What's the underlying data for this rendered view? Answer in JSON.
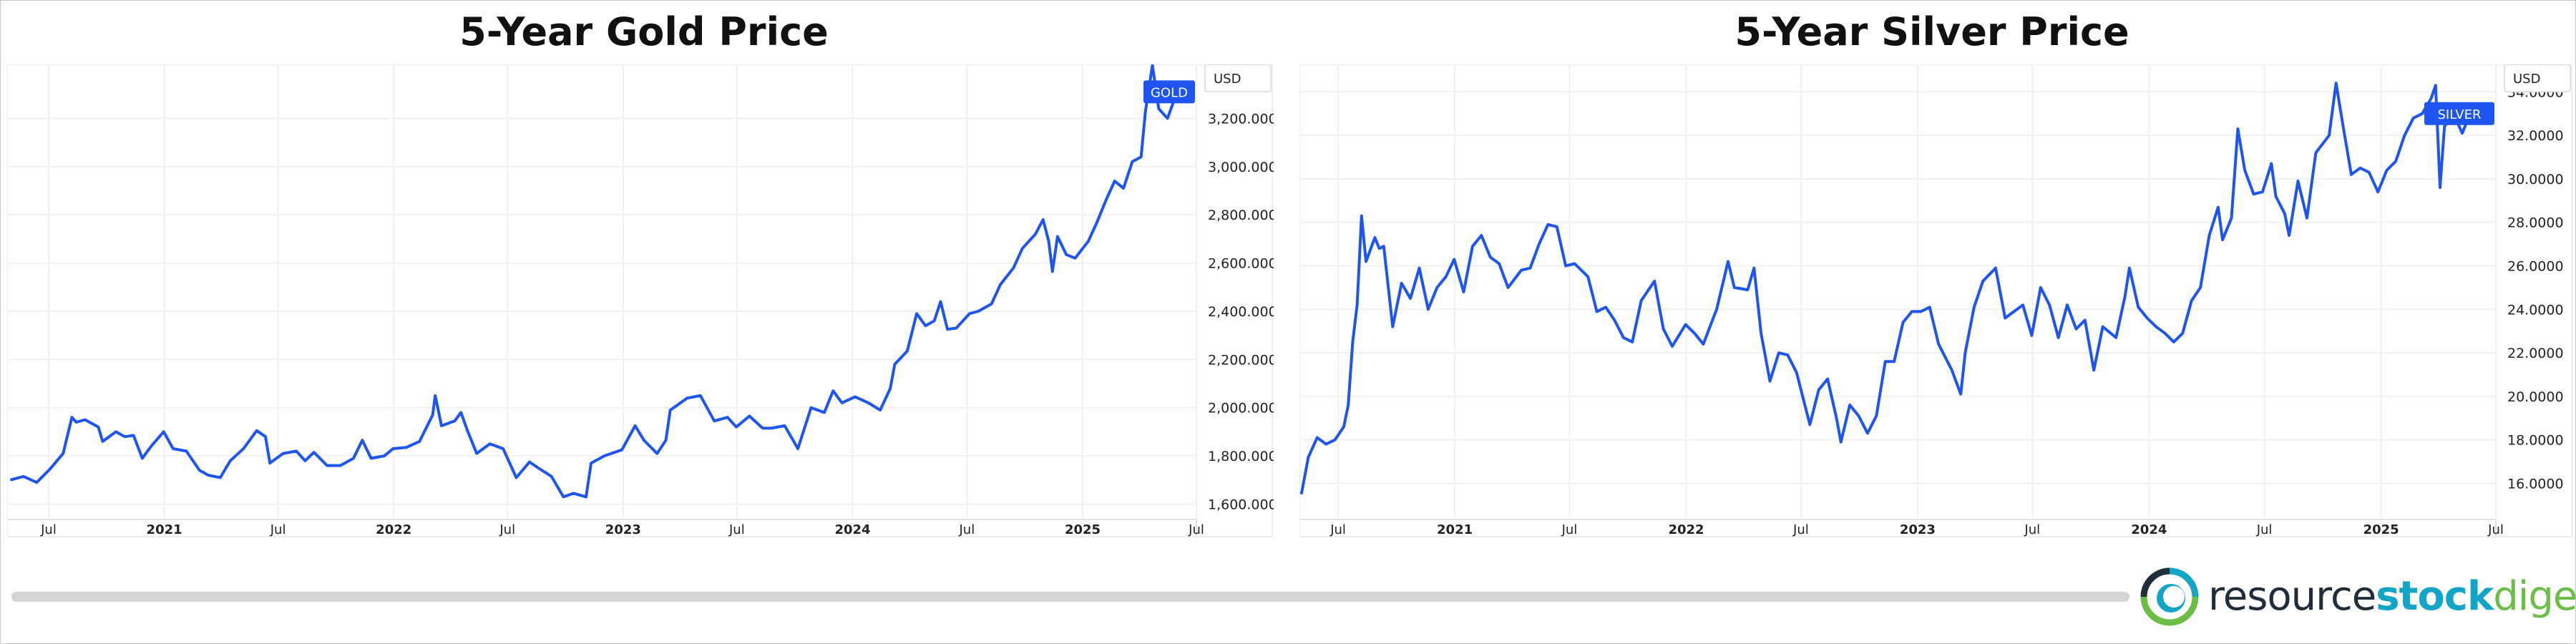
{
  "brand": {
    "part1": "resource",
    "part2": "stock",
    "part3": "digest",
    "colors": {
      "dark": "#1f2d3d",
      "blue": "#13a5c8",
      "green": "#6abd45"
    }
  },
  "styles": {
    "line_color": "#1e55f0",
    "grid_color": "#f0f0f0",
    "axis_text_color": "#222222"
  },
  "chart_data": [
    {
      "id": "gold",
      "type": "line",
      "title": "5-Year Gold Price",
      "currency_label": "USD",
      "series": [
        {
          "name": "GOLD"
        }
      ],
      "xlim": [
        "2020-04-26",
        "2025-07-01"
      ],
      "ylim": [
        1560,
        3400
      ],
      "yticks": [
        1600,
        1800,
        2000,
        2200,
        2400,
        2600,
        2800,
        3000,
        3200
      ],
      "ytick_labels": [
        "1,600.000",
        "1,800.000",
        "2,000.000",
        "2,200.000",
        "2,400.000",
        "2,600.000",
        "2,800.000",
        "3,000.000",
        "3,200.000"
      ],
      "xticks": [
        {
          "date": "2020-07-01",
          "label": "Jul",
          "bold": false
        },
        {
          "date": "2021-01-01",
          "label": "2021",
          "bold": true
        },
        {
          "date": "2021-07-01",
          "label": "Jul",
          "bold": false
        },
        {
          "date": "2022-01-01",
          "label": "2022",
          "bold": true
        },
        {
          "date": "2022-07-01",
          "label": "Jul",
          "bold": false
        },
        {
          "date": "2023-01-01",
          "label": "2023",
          "bold": true
        },
        {
          "date": "2023-07-01",
          "label": "Jul",
          "bold": false
        },
        {
          "date": "2024-01-01",
          "label": "2024",
          "bold": true
        },
        {
          "date": "2024-07-01",
          "label": "Jul",
          "bold": false
        },
        {
          "date": "2025-01-01",
          "label": "2025",
          "bold": true
        },
        {
          "date": "2025-07-01",
          "label": "Jul",
          "bold": false
        }
      ],
      "points": [
        [
          "2020-05-01",
          1700
        ],
        [
          "2020-05-22",
          1715
        ],
        [
          "2020-06-12",
          1690
        ],
        [
          "2020-07-03",
          1745
        ],
        [
          "2020-07-24",
          1810
        ],
        [
          "2020-08-07",
          1960
        ],
        [
          "2020-08-14",
          1940
        ],
        [
          "2020-08-28",
          1950
        ],
        [
          "2020-09-18",
          1920
        ],
        [
          "2020-09-25",
          1860
        ],
        [
          "2020-10-16",
          1900
        ],
        [
          "2020-10-30",
          1880
        ],
        [
          "2020-11-13",
          1885
        ],
        [
          "2020-11-27",
          1790
        ],
        [
          "2020-12-11",
          1840
        ],
        [
          "2020-12-31",
          1900
        ],
        [
          "2021-01-15",
          1830
        ],
        [
          "2021-02-05",
          1820
        ],
        [
          "2021-02-26",
          1740
        ],
        [
          "2021-03-12",
          1720
        ],
        [
          "2021-03-31",
          1710
        ],
        [
          "2021-04-16",
          1780
        ],
        [
          "2021-05-07",
          1830
        ],
        [
          "2021-05-28",
          1905
        ],
        [
          "2021-06-11",
          1880
        ],
        [
          "2021-06-18",
          1770
        ],
        [
          "2021-07-09",
          1810
        ],
        [
          "2021-07-30",
          1820
        ],
        [
          "2021-08-13",
          1780
        ],
        [
          "2021-08-27",
          1815
        ],
        [
          "2021-09-17",
          1760
        ],
        [
          "2021-10-08",
          1760
        ],
        [
          "2021-10-29",
          1790
        ],
        [
          "2021-11-12",
          1865
        ],
        [
          "2021-11-26",
          1790
        ],
        [
          "2021-12-17",
          1800
        ],
        [
          "2021-12-31",
          1830
        ],
        [
          "2022-01-21",
          1835
        ],
        [
          "2022-02-11",
          1860
        ],
        [
          "2022-03-04",
          1970
        ],
        [
          "2022-03-08",
          2050
        ],
        [
          "2022-03-18",
          1925
        ],
        [
          "2022-04-08",
          1945
        ],
        [
          "2022-04-18",
          1980
        ],
        [
          "2022-04-29",
          1900
        ],
        [
          "2022-05-13",
          1810
        ],
        [
          "2022-06-03",
          1850
        ],
        [
          "2022-06-24",
          1830
        ],
        [
          "2022-07-15",
          1710
        ],
        [
          "2022-08-05",
          1775
        ],
        [
          "2022-08-19",
          1750
        ],
        [
          "2022-09-09",
          1715
        ],
        [
          "2022-09-28",
          1630
        ],
        [
          "2022-10-14",
          1645
        ],
        [
          "2022-11-03",
          1630
        ],
        [
          "2022-11-11",
          1770
        ],
        [
          "2022-12-02",
          1800
        ],
        [
          "2022-12-30",
          1825
        ],
        [
          "2023-01-20",
          1925
        ],
        [
          "2023-02-03",
          1865
        ],
        [
          "2023-02-24",
          1810
        ],
        [
          "2023-03-10",
          1865
        ],
        [
          "2023-03-17",
          1990
        ],
        [
          "2023-04-13",
          2040
        ],
        [
          "2023-05-04",
          2050
        ],
        [
          "2023-05-26",
          1945
        ],
        [
          "2023-06-16",
          1960
        ],
        [
          "2023-06-30",
          1920
        ],
        [
          "2023-07-21",
          1965
        ],
        [
          "2023-08-11",
          1915
        ],
        [
          "2023-08-25",
          1915
        ],
        [
          "2023-09-15",
          1925
        ],
        [
          "2023-10-06",
          1830
        ],
        [
          "2023-10-27",
          2000
        ],
        [
          "2023-11-17",
          1980
        ],
        [
          "2023-12-01",
          2070
        ],
        [
          "2023-12-15",
          2020
        ],
        [
          "2024-01-05",
          2045
        ],
        [
          "2024-01-26",
          2020
        ],
        [
          "2024-02-14",
          1990
        ],
        [
          "2024-03-01",
          2080
        ],
        [
          "2024-03-08",
          2180
        ],
        [
          "2024-03-28",
          2235
        ],
        [
          "2024-04-12",
          2390
        ],
        [
          "2024-04-26",
          2340
        ],
        [
          "2024-05-10",
          2360
        ],
        [
          "2024-05-20",
          2440
        ],
        [
          "2024-05-31",
          2325
        ],
        [
          "2024-06-14",
          2330
        ],
        [
          "2024-07-05",
          2390
        ],
        [
          "2024-07-19",
          2400
        ],
        [
          "2024-08-09",
          2430
        ],
        [
          "2024-08-23",
          2510
        ],
        [
          "2024-09-13",
          2580
        ],
        [
          "2024-09-27",
          2660
        ],
        [
          "2024-10-18",
          2720
        ],
        [
          "2024-10-30",
          2780
        ],
        [
          "2024-11-08",
          2690
        ],
        [
          "2024-11-14",
          2565
        ],
        [
          "2024-11-22",
          2710
        ],
        [
          "2024-12-06",
          2635
        ],
        [
          "2024-12-20",
          2620
        ],
        [
          "2025-01-10",
          2690
        ],
        [
          "2025-01-24",
          2770
        ],
        [
          "2025-02-07",
          2860
        ],
        [
          "2025-02-21",
          2940
        ],
        [
          "2025-03-07",
          2910
        ],
        [
          "2025-03-21",
          3020
        ],
        [
          "2025-04-04",
          3040
        ],
        [
          "2025-04-11",
          3230
        ],
        [
          "2025-04-22",
          3420
        ],
        [
          "2025-05-02",
          3240
        ],
        [
          "2025-05-16",
          3200
        ],
        [
          "2025-05-30",
          3300
        ],
        [
          "2025-06-06",
          3310
        ]
      ]
    },
    {
      "id": "silver",
      "type": "line",
      "title": "5-Year Silver Price",
      "currency_label": "USD",
      "series": [
        {
          "name": "SILVER"
        }
      ],
      "xlim": [
        "2020-05-01",
        "2025-07-01"
      ],
      "ylim": [
        14.6,
        35.0
      ],
      "yticks": [
        16,
        18,
        20,
        22,
        24,
        26,
        28,
        30,
        32,
        34
      ],
      "ytick_labels": [
        "16.0000",
        "18.0000",
        "20.0000",
        "22.0000",
        "24.0000",
        "26.0000",
        "28.0000",
        "30.0000",
        "32.0000",
        "34.0000"
      ],
      "xticks": [
        {
          "date": "2020-07-01",
          "label": "Jul",
          "bold": false
        },
        {
          "date": "2021-01-01",
          "label": "2021",
          "bold": true
        },
        {
          "date": "2021-07-01",
          "label": "Jul",
          "bold": false
        },
        {
          "date": "2022-01-01",
          "label": "2022",
          "bold": true
        },
        {
          "date": "2022-07-01",
          "label": "Jul",
          "bold": false
        },
        {
          "date": "2023-01-01",
          "label": "2023",
          "bold": true
        },
        {
          "date": "2023-07-01",
          "label": "Jul",
          "bold": false
        },
        {
          "date": "2024-01-01",
          "label": "2024",
          "bold": true
        },
        {
          "date": "2024-07-01",
          "label": "Jul",
          "bold": false
        },
        {
          "date": "2025-01-01",
          "label": "2025",
          "bold": true
        },
        {
          "date": "2025-07-01",
          "label": "Jul",
          "bold": false
        }
      ],
      "points": [
        [
          "2020-05-04",
          15.5
        ],
        [
          "2020-05-15",
          17.2
        ],
        [
          "2020-05-29",
          18.1
        ],
        [
          "2020-06-12",
          17.8
        ],
        [
          "2020-06-26",
          18.0
        ],
        [
          "2020-07-10",
          18.6
        ],
        [
          "2020-07-17",
          19.6
        ],
        [
          "2020-07-24",
          22.5
        ],
        [
          "2020-07-31",
          24.2
        ],
        [
          "2020-08-07",
          28.3
        ],
        [
          "2020-08-14",
          26.2
        ],
        [
          "2020-08-28",
          27.3
        ],
        [
          "2020-09-04",
          26.8
        ],
        [
          "2020-09-11",
          26.9
        ],
        [
          "2020-09-25",
          23.2
        ],
        [
          "2020-10-09",
          25.2
        ],
        [
          "2020-10-23",
          24.5
        ],
        [
          "2020-11-06",
          25.9
        ],
        [
          "2020-11-20",
          24.0
        ],
        [
          "2020-12-04",
          25.0
        ],
        [
          "2020-12-18",
          25.5
        ],
        [
          "2020-12-31",
          26.3
        ],
        [
          "2021-01-15",
          24.8
        ],
        [
          "2021-01-29",
          26.9
        ],
        [
          "2021-02-12",
          27.4
        ],
        [
          "2021-02-26",
          26.4
        ],
        [
          "2021-03-12",
          26.1
        ],
        [
          "2021-03-26",
          25.0
        ],
        [
          "2021-04-16",
          25.8
        ],
        [
          "2021-04-30",
          25.9
        ],
        [
          "2021-05-14",
          27.0
        ],
        [
          "2021-05-28",
          27.9
        ],
        [
          "2021-06-11",
          27.8
        ],
        [
          "2021-06-25",
          26.0
        ],
        [
          "2021-07-09",
          26.1
        ],
        [
          "2021-07-30",
          25.5
        ],
        [
          "2021-08-13",
          23.9
        ],
        [
          "2021-08-27",
          24.1
        ],
        [
          "2021-09-10",
          23.5
        ],
        [
          "2021-09-24",
          22.7
        ],
        [
          "2021-10-08",
          22.5
        ],
        [
          "2021-10-22",
          24.4
        ],
        [
          "2021-11-12",
          25.3
        ],
        [
          "2021-11-26",
          23.1
        ],
        [
          "2021-12-10",
          22.3
        ],
        [
          "2021-12-31",
          23.3
        ],
        [
          "2022-01-14",
          22.9
        ],
        [
          "2022-01-28",
          22.4
        ],
        [
          "2022-02-18",
          24.0
        ],
        [
          "2022-03-04",
          25.7
        ],
        [
          "2022-03-08",
          26.2
        ],
        [
          "2022-03-18",
          25.0
        ],
        [
          "2022-04-08",
          24.9
        ],
        [
          "2022-04-18",
          25.9
        ],
        [
          "2022-04-29",
          22.9
        ],
        [
          "2022-05-13",
          20.7
        ],
        [
          "2022-05-27",
          22.0
        ],
        [
          "2022-06-10",
          21.9
        ],
        [
          "2022-06-24",
          21.1
        ],
        [
          "2022-07-15",
          18.7
        ],
        [
          "2022-07-29",
          20.3
        ],
        [
          "2022-08-12",
          20.8
        ],
        [
          "2022-08-26",
          19.0
        ],
        [
          "2022-09-02",
          17.9
        ],
        [
          "2022-09-16",
          19.6
        ],
        [
          "2022-09-30",
          19.1
        ],
        [
          "2022-10-14",
          18.3
        ],
        [
          "2022-10-28",
          19.1
        ],
        [
          "2022-11-11",
          21.6
        ],
        [
          "2022-11-25",
          21.6
        ],
        [
          "2022-12-09",
          23.4
        ],
        [
          "2022-12-23",
          23.9
        ],
        [
          "2023-01-06",
          23.9
        ],
        [
          "2023-01-20",
          24.1
        ],
        [
          "2023-02-03",
          22.4
        ],
        [
          "2023-02-24",
          21.2
        ],
        [
          "2023-03-10",
          20.1
        ],
        [
          "2023-03-17",
          22.0
        ],
        [
          "2023-03-31",
          24.1
        ],
        [
          "2023-04-14",
          25.3
        ],
        [
          "2023-05-04",
          25.9
        ],
        [
          "2023-05-19",
          23.6
        ],
        [
          "2023-06-02",
          23.9
        ],
        [
          "2023-06-16",
          24.2
        ],
        [
          "2023-06-30",
          22.8
        ],
        [
          "2023-07-14",
          25.0
        ],
        [
          "2023-07-28",
          24.2
        ],
        [
          "2023-08-11",
          22.7
        ],
        [
          "2023-08-25",
          24.2
        ],
        [
          "2023-09-08",
          23.1
        ],
        [
          "2023-09-22",
          23.5
        ],
        [
          "2023-10-06",
          21.2
        ],
        [
          "2023-10-20",
          23.2
        ],
        [
          "2023-11-10",
          22.7
        ],
        [
          "2023-11-24",
          24.6
        ],
        [
          "2023-12-01",
          25.9
        ],
        [
          "2023-12-15",
          24.1
        ],
        [
          "2023-12-29",
          23.6
        ],
        [
          "2024-01-12",
          23.2
        ],
        [
          "2024-01-26",
          22.9
        ],
        [
          "2024-02-09",
          22.5
        ],
        [
          "2024-02-23",
          22.9
        ],
        [
          "2024-03-08",
          24.4
        ],
        [
          "2024-03-22",
          25.0
        ],
        [
          "2024-04-05",
          27.4
        ],
        [
          "2024-04-19",
          28.7
        ],
        [
          "2024-04-26",
          27.2
        ],
        [
          "2024-05-10",
          28.2
        ],
        [
          "2024-05-20",
          32.3
        ],
        [
          "2024-05-31",
          30.4
        ],
        [
          "2024-06-14",
          29.3
        ],
        [
          "2024-06-28",
          29.4
        ],
        [
          "2024-07-12",
          30.7
        ],
        [
          "2024-07-19",
          29.2
        ],
        [
          "2024-08-02",
          28.4
        ],
        [
          "2024-08-09",
          27.4
        ],
        [
          "2024-08-23",
          29.9
        ],
        [
          "2024-09-06",
          28.2
        ],
        [
          "2024-09-20",
          31.2
        ],
        [
          "2024-10-11",
          32.0
        ],
        [
          "2024-10-22",
          34.4
        ],
        [
          "2024-11-01",
          32.6
        ],
        [
          "2024-11-15",
          30.2
        ],
        [
          "2024-11-29",
          30.5
        ],
        [
          "2024-12-13",
          30.3
        ],
        [
          "2024-12-27",
          29.4
        ],
        [
          "2025-01-10",
          30.4
        ],
        [
          "2025-01-24",
          30.8
        ],
        [
          "2025-02-07",
          32.0
        ],
        [
          "2025-02-21",
          32.8
        ],
        [
          "2025-03-07",
          33.0
        ],
        [
          "2025-03-21",
          33.7
        ],
        [
          "2025-03-28",
          34.3
        ],
        [
          "2025-04-04",
          29.6
        ],
        [
          "2025-04-11",
          32.4
        ],
        [
          "2025-04-25",
          33.0
        ],
        [
          "2025-05-09",
          32.1
        ],
        [
          "2025-05-16",
          32.6
        ],
        [
          "2025-05-23",
          33.2
        ],
        [
          "2025-06-06",
          33.0
        ]
      ]
    }
  ]
}
